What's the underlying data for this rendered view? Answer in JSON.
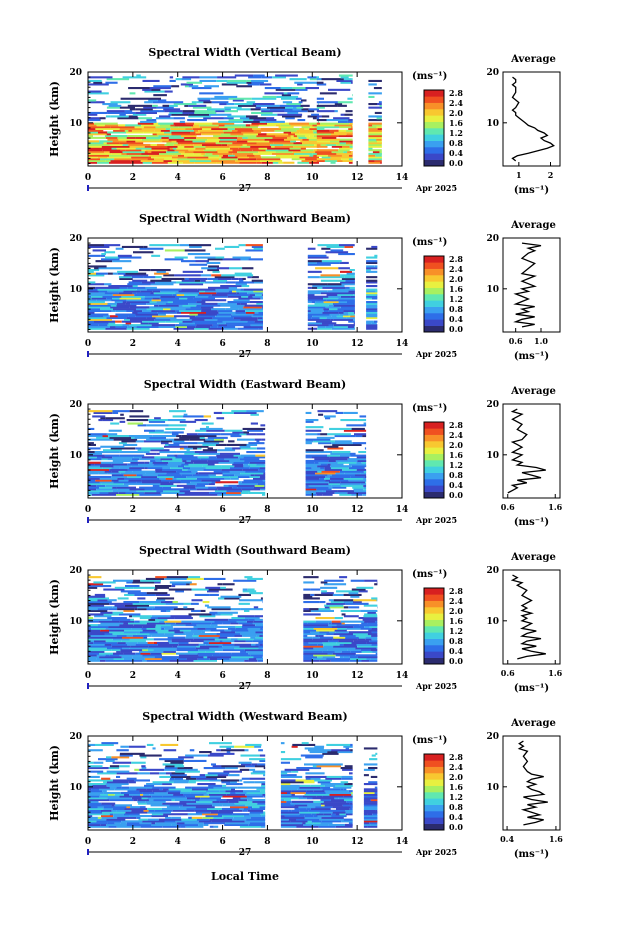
{
  "colorbar": {
    "unit": "(ms⁻¹)",
    "tick_labels": [
      "2.8",
      "2.4",
      "2.0",
      "1.6",
      "1.2",
      "0.8",
      "0.4",
      "0.0"
    ],
    "colors": [
      "#2b2b6e",
      "#3a48c8",
      "#2e6ee8",
      "#3aa0f0",
      "#40d0e0",
      "#60e8b0",
      "#a8f060",
      "#e8f040",
      "#f8c830",
      "#f89028",
      "#f05020",
      "#d82020"
    ]
  },
  "x_axis": {
    "ticks": [
      0,
      2,
      4,
      6,
      8,
      10,
      12,
      14
    ],
    "tick_labels": [
      "0",
      "2",
      "4",
      "6",
      "8",
      "10",
      "12",
      "14"
    ],
    "day_label": "27",
    "date_label": "Apr 2025",
    "bottom_label": "Local Time"
  },
  "y_axis": {
    "label": "Height (km)",
    "ticks": [
      10,
      20
    ],
    "tick_labels": [
      "10",
      "20"
    ],
    "range": [
      1.5,
      20
    ]
  },
  "average_title": "Average",
  "average_xlabel": "(ms⁻¹)",
  "chart_data": [
    {
      "type": "heatmap",
      "title": "Spectral Width (Vertical Beam)",
      "xlabel": "Local Time",
      "ylabel": "Height (km)",
      "xlim": [
        0,
        14
      ],
      "ylim": [
        1.5,
        20
      ],
      "colorbar_range": [
        0.0,
        2.8
      ],
      "data_segments_hours": [
        [
          0.0,
          10.3
        ],
        [
          10.2,
          11.8
        ],
        [
          12.5,
          13.1
        ]
      ],
      "profile": {
        "type": "line",
        "title": "Average",
        "xlim": [
          0.5,
          2.3
        ],
        "xticks": [
          1,
          2
        ],
        "xtick_labels": [
          "1",
          "2"
        ],
        "x": [
          0.9,
          0.8,
          0.95,
          1.3,
          1.6,
          1.9,
          2.1,
          2.0,
          1.8,
          1.7,
          1.9,
          1.8,
          1.6,
          1.5,
          1.3,
          1.2,
          1.1,
          1.0,
          0.9,
          0.9,
          0.8,
          0.9,
          1.0,
          0.8,
          0.9,
          0.9,
          0.8,
          0.9,
          0.9,
          0.8
        ],
        "y": [
          2.5,
          3,
          3.5,
          4,
          4.5,
          5,
          5.5,
          6,
          6.5,
          7,
          7.5,
          8,
          8.5,
          9,
          9.5,
          10,
          10.5,
          11,
          11.5,
          12,
          12.5,
          13,
          14,
          15,
          16,
          17,
          17.5,
          18,
          18.5,
          19
        ]
      }
    },
    {
      "type": "heatmap",
      "title": "Spectral Width (Northward Beam)",
      "xlabel": "Local Time",
      "ylabel": "Height (km)",
      "xlim": [
        0,
        14
      ],
      "ylim": [
        1.5,
        20
      ],
      "colorbar_range": [
        0.0,
        2.8
      ],
      "data_segments_hours": [
        [
          0.0,
          7.8
        ],
        [
          9.8,
          11.9
        ],
        [
          12.4,
          12.9
        ]
      ],
      "profile": {
        "type": "line",
        "title": "Average",
        "xlim": [
          0.4,
          1.3
        ],
        "xticks": [
          0.6,
          1.0
        ],
        "xtick_labels": [
          "0.6",
          "1.0"
        ],
        "x": [
          0.7,
          0.9,
          0.6,
          0.7,
          0.9,
          0.6,
          0.8,
          0.7,
          0.9,
          0.6,
          0.7,
          0.8,
          0.7,
          0.6,
          0.8,
          0.7,
          0.9,
          0.8,
          0.7,
          0.8,
          0.9,
          0.7,
          0.8,
          0.9,
          0.7,
          0.8,
          0.9,
          0.8,
          1.0,
          0.7
        ],
        "y": [
          2.5,
          3,
          3.5,
          4,
          4.5,
          5,
          5.5,
          6,
          6.5,
          7,
          7.5,
          8,
          8.5,
          9,
          9.5,
          10,
          10.5,
          11,
          11.5,
          12,
          12.5,
          13,
          14,
          15,
          16,
          17,
          17.5,
          18,
          18.5,
          19
        ]
      }
    },
    {
      "type": "heatmap",
      "title": "Spectral Width (Eastward Beam)",
      "xlabel": "Local Time",
      "ylabel": "Height (km)",
      "xlim": [
        0,
        14
      ],
      "ylim": [
        1.5,
        20
      ],
      "colorbar_range": [
        0.0,
        2.8
      ],
      "data_segments_hours": [
        [
          0.0,
          7.9
        ],
        [
          9.7,
          12.4
        ]
      ],
      "profile": {
        "type": "line",
        "title": "Average",
        "xlim": [
          0.5,
          1.7
        ],
        "xticks": [
          0.6,
          1.6
        ],
        "xtick_labels": [
          "0.6",
          "1.6"
        ],
        "x": [
          0.6,
          0.7,
          0.8,
          0.7,
          1.0,
          0.8,
          1.3,
          1.1,
          0.9,
          1.4,
          1.2,
          0.8,
          0.9,
          0.7,
          0.8,
          0.9,
          0.7,
          0.8,
          0.9,
          0.8,
          0.7,
          0.9,
          1.0,
          0.8,
          0.9,
          0.7,
          0.8,
          0.9,
          0.7,
          0.8
        ],
        "y": [
          2.5,
          3,
          3.5,
          4,
          4.5,
          5,
          5.5,
          6,
          6.5,
          7,
          7.5,
          8,
          8.5,
          9,
          9.5,
          10,
          10.5,
          11,
          11.5,
          12,
          12.5,
          13,
          14,
          15,
          16,
          17,
          17.5,
          18,
          18.5,
          19
        ]
      }
    },
    {
      "type": "heatmap",
      "title": "Spectral Width (Southward Beam)",
      "xlabel": "Local Time",
      "ylabel": "Height (km)",
      "xlim": [
        0,
        14
      ],
      "ylim": [
        1.5,
        20
      ],
      "colorbar_range": [
        0.0,
        2.8
      ],
      "data_segments_hours": [
        [
          0.0,
          7.8
        ],
        [
          9.6,
          12.9
        ]
      ],
      "profile": {
        "type": "line",
        "title": "Average",
        "xlim": [
          0.5,
          1.7
        ],
        "xticks": [
          0.6,
          1.6
        ],
        "xtick_labels": [
          "0.6",
          "1.6"
        ],
        "x": [
          0.8,
          1.0,
          1.4,
          1.1,
          0.9,
          1.2,
          0.9,
          1.0,
          1.3,
          0.9,
          1.0,
          1.2,
          0.9,
          1.0,
          1.1,
          0.9,
          1.0,
          0.9,
          1.1,
          0.9,
          1.0,
          0.9,
          1.1,
          0.9,
          1.0,
          0.8,
          0.9,
          0.7,
          0.8,
          0.7
        ],
        "y": [
          2.5,
          3,
          3.5,
          4,
          4.5,
          5,
          5.5,
          6,
          6.5,
          7,
          7.5,
          8,
          8.5,
          9,
          9.5,
          10,
          10.5,
          11,
          11.5,
          12,
          12.5,
          13,
          14,
          15,
          16,
          17,
          17.5,
          18,
          18.5,
          19
        ]
      }
    },
    {
      "type": "heatmap",
      "title": "Spectral Width (Westward Beam)",
      "xlabel": "Local Time",
      "ylabel": "Height (km)",
      "xlim": [
        0,
        14
      ],
      "ylim": [
        1.5,
        20
      ],
      "colorbar_range": [
        0.0,
        2.8
      ],
      "data_segments_hours": [
        [
          0.0,
          7.9
        ],
        [
          8.6,
          11.8
        ],
        [
          12.3,
          12.9
        ]
      ],
      "profile": {
        "type": "line",
        "title": "Average",
        "xlim": [
          0.3,
          1.7
        ],
        "xticks": [
          0.4,
          1.6
        ],
        "xtick_labels": [
          "0.4",
          "1.6"
        ],
        "x": [
          0.8,
          1.1,
          1.3,
          0.9,
          1.2,
          1.0,
          0.8,
          1.1,
          0.9,
          1.4,
          1.0,
          0.8,
          1.3,
          1.2,
          1.0,
          0.9,
          1.1,
          0.9,
          1.0,
          1.3,
          1.0,
          0.9,
          0.8,
          0.9,
          0.8,
          0.9,
          0.7,
          0.8,
          0.7,
          0.8
        ],
        "y": [
          2.5,
          3,
          3.5,
          4,
          4.5,
          5,
          5.5,
          6,
          6.5,
          7,
          7.5,
          8,
          8.5,
          9,
          9.5,
          10,
          10.5,
          11,
          11.5,
          12,
          12.5,
          13,
          14,
          15,
          16,
          17,
          17.5,
          18,
          18.5,
          19
        ]
      }
    }
  ]
}
